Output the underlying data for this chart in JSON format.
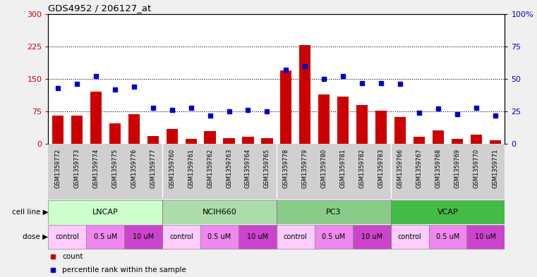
{
  "title": "GDS4952 / 206127_at",
  "samples": [
    "GSM1359772",
    "GSM1359773",
    "GSM1359774",
    "GSM1359775",
    "GSM1359776",
    "GSM1359777",
    "GSM1359760",
    "GSM1359761",
    "GSM1359762",
    "GSM1359763",
    "GSM1359764",
    "GSM1359765",
    "GSM1359778",
    "GSM1359779",
    "GSM1359780",
    "GSM1359781",
    "GSM1359782",
    "GSM1359783",
    "GSM1359766",
    "GSM1359767",
    "GSM1359768",
    "GSM1359769",
    "GSM1359770",
    "GSM1359771"
  ],
  "counts": [
    65,
    65,
    120,
    48,
    68,
    18,
    35,
    12,
    30,
    13,
    17,
    13,
    170,
    228,
    115,
    110,
    90,
    77,
    62,
    17,
    32,
    12,
    22,
    9
  ],
  "percentiles": [
    43,
    46,
    52,
    42,
    44,
    28,
    26,
    28,
    22,
    25,
    26,
    25,
    57,
    60,
    50,
    52,
    47,
    47,
    46,
    24,
    27,
    23,
    28,
    22
  ],
  "cell_lines": [
    {
      "label": "LNCAP",
      "start": 0,
      "end": 6,
      "color": "#ccffcc"
    },
    {
      "label": "NCIH660",
      "start": 6,
      "end": 12,
      "color": "#aaddaa"
    },
    {
      "label": "PC3",
      "start": 12,
      "end": 18,
      "color": "#88cc88"
    },
    {
      "label": "VCAP",
      "start": 18,
      "end": 24,
      "color": "#44bb44"
    }
  ],
  "doses": [
    {
      "label": "control",
      "start": 0,
      "end": 2
    },
    {
      "label": "0.5 uM",
      "start": 2,
      "end": 4
    },
    {
      "label": "10 uM",
      "start": 4,
      "end": 6
    },
    {
      "label": "control",
      "start": 6,
      "end": 8
    },
    {
      "label": "0.5 uM",
      "start": 8,
      "end": 10
    },
    {
      "label": "10 uM",
      "start": 10,
      "end": 12
    },
    {
      "label": "control",
      "start": 12,
      "end": 14
    },
    {
      "label": "0.5 uM",
      "start": 14,
      "end": 16
    },
    {
      "label": "10 uM",
      "start": 16,
      "end": 18
    },
    {
      "label": "control",
      "start": 18,
      "end": 20
    },
    {
      "label": "0.5 uM",
      "start": 20,
      "end": 22
    },
    {
      "label": "10 uM",
      "start": 22,
      "end": 24
    }
  ],
  "dose_colors": {
    "control": "#ffccff",
    "0.5 uM": "#ee88ee",
    "10 uM": "#cc44cc"
  },
  "cell_line_separators": [
    5.5,
    11.5,
    17.5
  ],
  "ylim_left": [
    0,
    300
  ],
  "ylim_right": [
    0,
    100
  ],
  "yticks_left": [
    0,
    75,
    150,
    225,
    300
  ],
  "yticks_right": [
    0,
    25,
    50,
    75,
    100
  ],
  "bar_color": "#cc0000",
  "dot_color": "#0000cc",
  "plot_bg": "#ffffff",
  "tick_label_bg": "#d0d0d0",
  "fig_bg": "#f0f0f0"
}
